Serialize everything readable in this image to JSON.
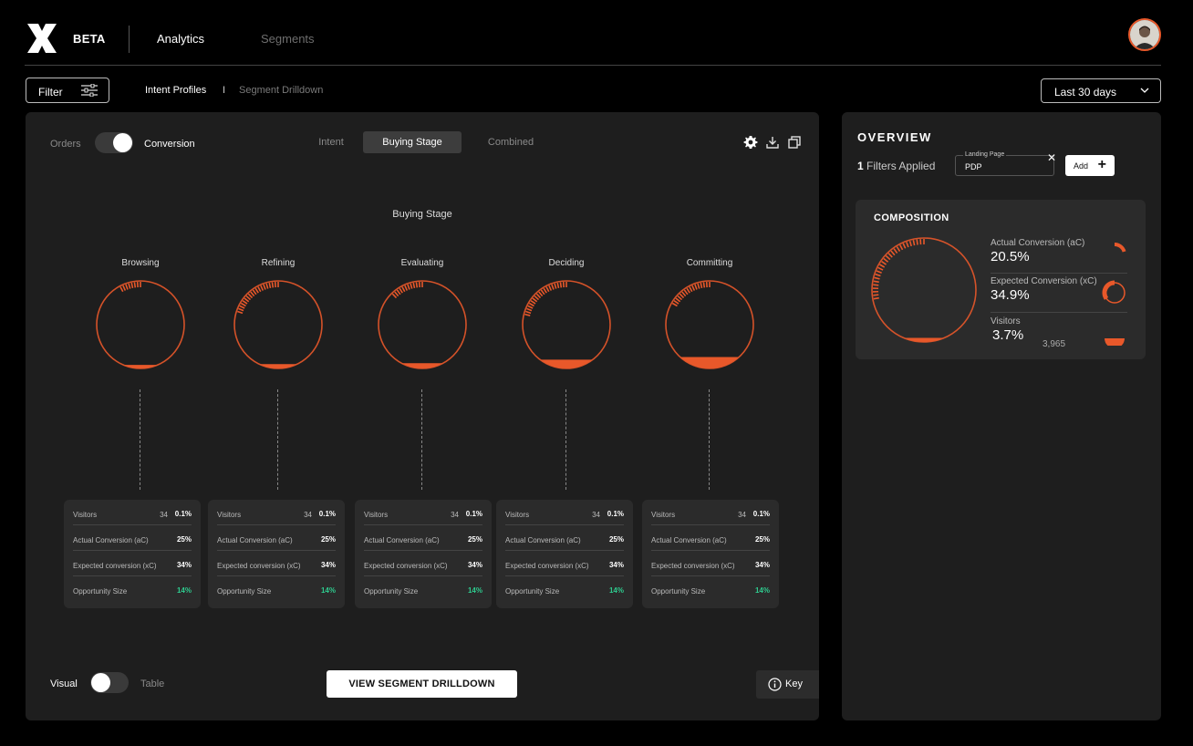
{
  "header": {
    "badge": "BETA",
    "nav": [
      "Analytics",
      "Segments"
    ]
  },
  "subbar": {
    "filter_label": "Filter",
    "breadcrumb": [
      "Intent Profiles",
      "I",
      "Segment Drilldown"
    ],
    "date_range": "Last 30 days"
  },
  "main": {
    "metric_toggle": {
      "left": "Orders",
      "right": "Conversion",
      "selected": "Conversion"
    },
    "tabs": [
      "Intent",
      "Buying Stage",
      "Combined"
    ],
    "active_tab": "Buying Stage",
    "chart_title": "Buying Stage",
    "stages": [
      {
        "name": "Browsing",
        "visitors_n": "34",
        "visitors_pct": "0.1%",
        "ac": "25%",
        "xc": "34%",
        "opp": "14%",
        "outer_fill": 0.08,
        "inner_fill": 0.04
      },
      {
        "name": "Refining",
        "visitors_n": "34",
        "visitors_pct": "0.1%",
        "ac": "25%",
        "xc": "34%",
        "opp": "14%",
        "outer_fill": 0.2,
        "inner_fill": 0.05
      },
      {
        "name": "Evaluating",
        "visitors_n": "34",
        "visitors_pct": "0.1%",
        "ac": "25%",
        "xc": "34%",
        "opp": "14%",
        "outer_fill": 0.13,
        "inner_fill": 0.06
      },
      {
        "name": "Deciding",
        "visitors_n": "34",
        "visitors_pct": "0.1%",
        "ac": "25%",
        "xc": "34%",
        "opp": "14%",
        "outer_fill": 0.22,
        "inner_fill": 0.1
      },
      {
        "name": "Committing",
        "visitors_n": "34",
        "visitors_pct": "0.1%",
        "ac": "25%",
        "xc": "34%",
        "opp": "14%",
        "outer_fill": 0.17,
        "inner_fill": 0.13
      }
    ],
    "card_labels": {
      "visitors": "Visitors",
      "ac": "Actual Conversion (aC)",
      "xc": "Expected conversion (xC)",
      "opp": "Opportunity Size"
    },
    "view_toggle": {
      "left": "Visual",
      "right": "Table",
      "selected": "Visual"
    },
    "cta": "VIEW SEGMENT DRILLDOWN",
    "key": "Key"
  },
  "overview": {
    "title": "OVERVIEW",
    "filters_count": "1",
    "filters_text": "Filters Applied",
    "chip_label": "Landing Page",
    "chip_value": "PDP",
    "add_label": "Add",
    "composition": {
      "title": "COMPOSITION",
      "outer_fill": 0.28,
      "inner_fill": 0.04,
      "metrics": [
        {
          "label": "Actual Conversion (aC)",
          "value": "20.5%",
          "sub": "",
          "fill": 0.205
        },
        {
          "label": "Expected Conversion (xC)",
          "value": "34.9%",
          "sub": "",
          "fill": 0.349
        },
        {
          "label": "Visitors",
          "value": "3.7%",
          "sub": "3,965",
          "fill": 0.037
        }
      ]
    }
  },
  "colors": {
    "accent": "#e8582a",
    "positive": "#2ecc8f",
    "panel": "#1e1e1e",
    "card": "#2b2b2b"
  },
  "icons": [
    "logo-x-icon",
    "filter-sliders-icon",
    "chevron-down-icon",
    "gear-icon",
    "download-icon",
    "copy-icon",
    "info-icon",
    "close-icon",
    "plus-icon"
  ]
}
